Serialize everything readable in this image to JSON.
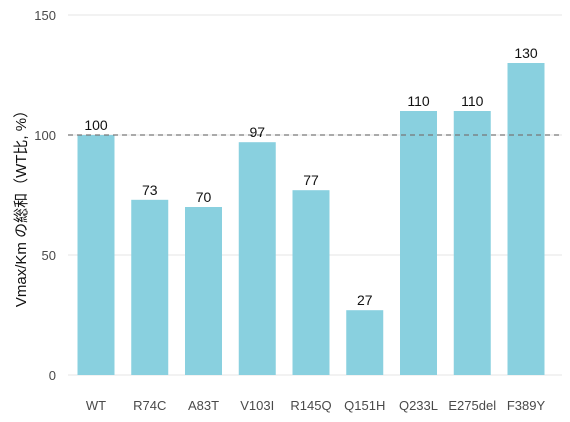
{
  "chart_data": {
    "type": "bar",
    "title": "",
    "xlabel": "",
    "ylabel": "Vmax/Km の総和（WT比, %）",
    "categories": [
      "WT",
      "R74C",
      "A83T",
      "V103I",
      "R145Q",
      "Q151H",
      "Q233L",
      "E275del",
      "F389Y"
    ],
    "values": [
      100,
      73,
      70,
      97,
      77,
      27,
      110,
      110,
      130
    ],
    "data_labels": [
      "100",
      "73",
      "70",
      "97",
      "77",
      "27",
      "110",
      "110",
      "130"
    ],
    "y_ticks": [
      0,
      50,
      100,
      150
    ],
    "y_tick_labels": [
      "0",
      "50",
      "100",
      "150"
    ],
    "ylim": [
      0,
      150
    ],
    "reference_line": 100,
    "grid": "horizontal",
    "legend": "none",
    "colors": {
      "bar": "#89d0df",
      "reference_line": "#777777",
      "grid": "#e6e6e6"
    }
  }
}
